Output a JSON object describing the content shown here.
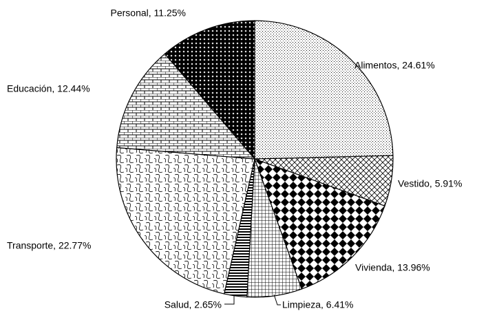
{
  "chart_data": {
    "type": "pie",
    "values": [
      24.61,
      5.91,
      13.96,
      6.41,
      2.65,
      22.77,
      12.44,
      11.25
    ],
    "value_labels": [
      "Alimentos, 24.61%",
      "Vestido, 5.91%",
      "Vivienda, 13.96%",
      "Limpieza, 6.41%",
      "Salud, 2.65%",
      "Transporte, 22.77%",
      "Educación, 12.44%",
      "Personal, 11.25%"
    ]
  }
}
